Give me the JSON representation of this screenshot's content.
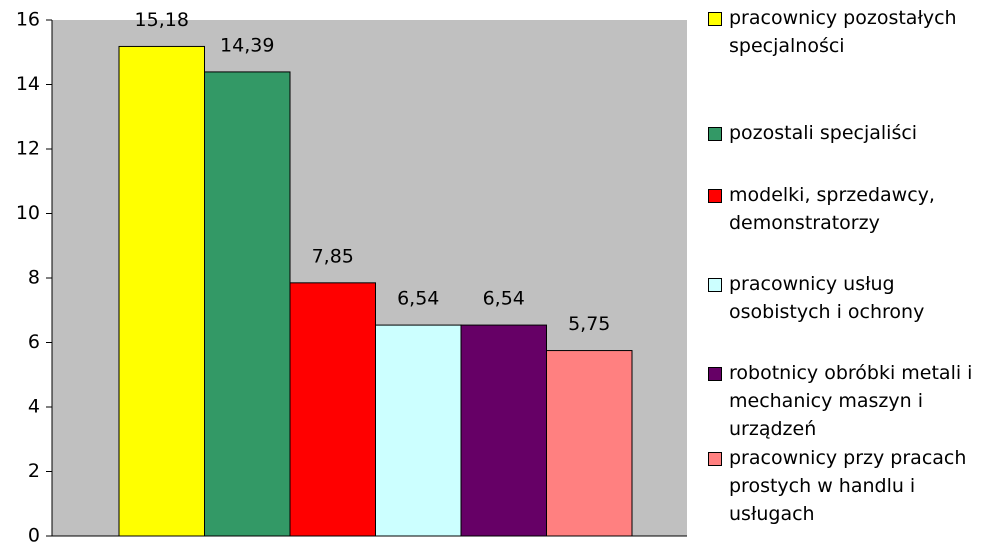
{
  "chart_data": {
    "type": "bar",
    "categories": [
      null
    ],
    "series": [
      {
        "name": "pracownicy pozostałych specjalności",
        "color": "#ffff00",
        "values": [
          15.18
        ],
        "value_labels": [
          "15,18"
        ]
      },
      {
        "name": "pozostali specjaliści",
        "color": "#339966",
        "values": [
          14.39
        ],
        "value_labels": [
          "14,39"
        ]
      },
      {
        "name": "modelki, sprzedawcy, demonstratorzy",
        "color": "#ff0000",
        "values": [
          7.85
        ],
        "value_labels": [
          "7,85"
        ]
      },
      {
        "name": "pracownicy usług osobistych i ochrony",
        "color": "#ccffff",
        "values": [
          6.54
        ],
        "value_labels": [
          "6,54"
        ]
      },
      {
        "name": "robotnicy obróbki metali i mechanicy maszyn i urządzeń",
        "color": "#660066",
        "values": [
          6.54
        ],
        "value_labels": [
          "6,54"
        ]
      },
      {
        "name": "pracownicy przy pracach prostych w handlu i usługach",
        "color": "#ff8080",
        "values": [
          5.75
        ],
        "value_labels": [
          "5,75"
        ]
      }
    ],
    "ylim": [
      0,
      16
    ],
    "yticks": [
      0,
      2,
      4,
      6,
      8,
      10,
      12,
      14,
      16
    ],
    "plot_background": "#c0c0c0",
    "legend": "right"
  }
}
